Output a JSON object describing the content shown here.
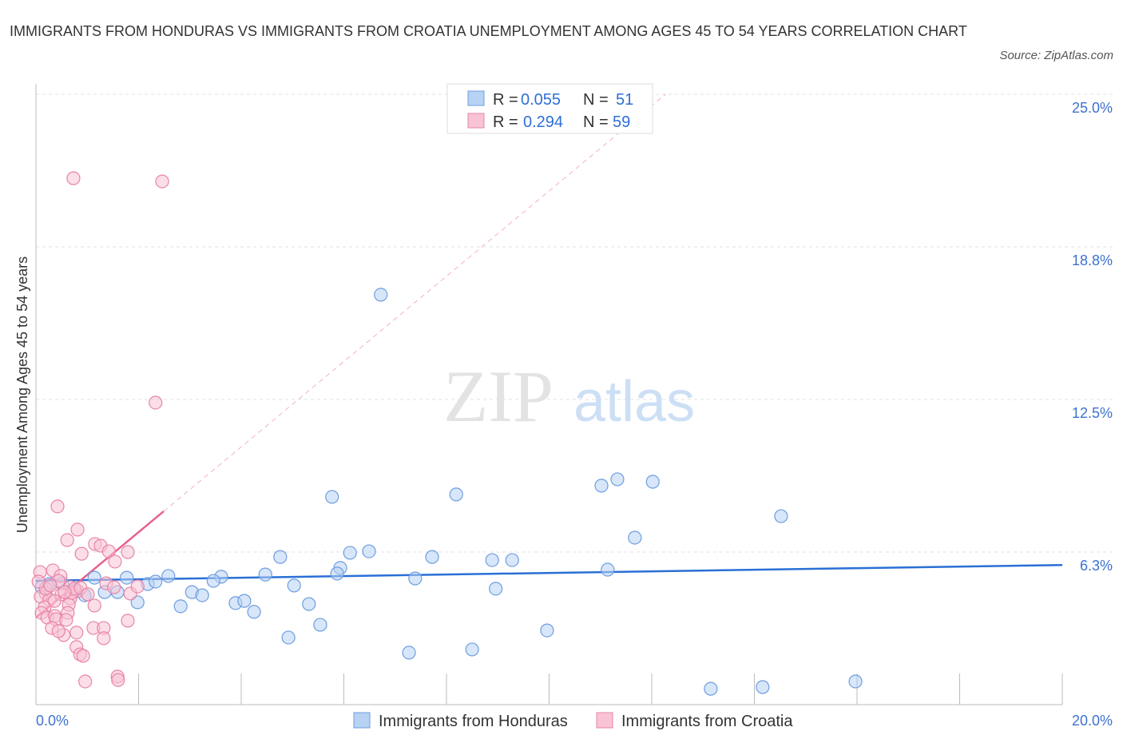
{
  "title": "IMMIGRANTS FROM HONDURAS VS IMMIGRANTS FROM CROATIA UNEMPLOYMENT AMONG AGES 45 TO 54 YEARS CORRELATION CHART",
  "source": "Source: ZipAtlas.com",
  "chart_data": {
    "type": "scatter",
    "title": "IMMIGRANTS FROM HONDURAS VS IMMIGRANTS FROM CROATIA UNEMPLOYMENT AMONG AGES 45 TO 54 YEARS CORRELATION CHART",
    "ylabel": "Unemployment Among Ages 45 to 54 years",
    "xlim": [
      0,
      20
    ],
    "ylim": [
      0,
      25
    ],
    "x_tick_labels": [
      "0.0%",
      "20.0%"
    ],
    "y_ticks": [
      6.25,
      12.5,
      18.75,
      25
    ],
    "y_tick_labels": [
      "6.3%",
      "12.5%",
      "18.8%",
      "25.0%"
    ],
    "grid": true,
    "legend_position": "top-center",
    "watermark": "ZIPatlas",
    "stats": [
      {
        "r_label": "R =",
        "r": "0.055",
        "n_label": "N =",
        "n": "51"
      },
      {
        "r_label": "R =",
        "r": "0.294",
        "n_label": "N =",
        "n": "59"
      }
    ],
    "series": [
      {
        "name": "Immigrants from Honduras",
        "fill": "#b8d2f4",
        "stroke": "#6d9de0",
        "line_color": "#2a6fd6",
        "trend": {
          "x": [
            0,
            20
          ],
          "y": [
            5.07,
            5.72
          ],
          "dashed_extension": false
        },
        "points": [
          [
            6.72,
            16.79
          ],
          [
            5.77,
            8.51
          ],
          [
            8.19,
            8.61
          ],
          [
            11.02,
            8.97
          ],
          [
            11.33,
            9.23
          ],
          [
            12.02,
            9.13
          ],
          [
            14.52,
            7.72
          ],
          [
            11.67,
            6.84
          ],
          [
            6.12,
            6.22
          ],
          [
            6.49,
            6.28
          ],
          [
            7.72,
            6.05
          ],
          [
            8.89,
            5.92
          ],
          [
            9.28,
            5.92
          ],
          [
            4.76,
            6.05
          ],
          [
            5.93,
            5.6
          ],
          [
            5.87,
            5.37
          ],
          [
            7.39,
            5.17
          ],
          [
            11.14,
            5.53
          ],
          [
            4.47,
            5.33
          ],
          [
            5.03,
            4.88
          ],
          [
            8.96,
            4.75
          ],
          [
            3.61,
            5.24
          ],
          [
            3.46,
            5.07
          ],
          [
            2.58,
            5.27
          ],
          [
            2.18,
            4.94
          ],
          [
            2.33,
            5.04
          ],
          [
            1.77,
            5.2
          ],
          [
            1.14,
            5.2
          ],
          [
            0.95,
            4.48
          ],
          [
            1.34,
            4.61
          ],
          [
            1.59,
            4.61
          ],
          [
            1.98,
            4.19
          ],
          [
            3.04,
            4.61
          ],
          [
            3.24,
            4.48
          ],
          [
            2.82,
            4.03
          ],
          [
            3.89,
            4.16
          ],
          [
            4.06,
            4.25
          ],
          [
            4.25,
            3.8
          ],
          [
            5.32,
            4.12
          ],
          [
            5.54,
            3.27
          ],
          [
            4.92,
            2.75
          ],
          [
            7.27,
            2.13
          ],
          [
            8.5,
            2.26
          ],
          [
            9.96,
            3.04
          ],
          [
            13.15,
            0.65
          ],
          [
            14.16,
            0.72
          ],
          [
            15.97,
            0.95
          ],
          [
            0.11,
            4.81
          ],
          [
            0.26,
            4.94
          ],
          [
            0.51,
            4.97
          ],
          [
            0.75,
            4.68
          ]
        ]
      },
      {
        "name": "Immigrants from Croatia",
        "fill": "#f8c3d4",
        "stroke": "#e884a7",
        "line_color": "#e8608e",
        "trend": {
          "x": [
            0,
            2.49
          ],
          "y": [
            3.57,
            7.92
          ],
          "dashed_extension": true
        },
        "points": [
          [
            0.73,
            21.56
          ],
          [
            2.46,
            21.43
          ],
          [
            2.33,
            12.37
          ],
          [
            0.42,
            8.12
          ],
          [
            0.81,
            7.17
          ],
          [
            0.61,
            6.74
          ],
          [
            1.15,
            6.58
          ],
          [
            1.26,
            6.51
          ],
          [
            1.42,
            6.28
          ],
          [
            1.79,
            6.25
          ],
          [
            0.89,
            6.18
          ],
          [
            1.54,
            5.86
          ],
          [
            0.08,
            5.43
          ],
          [
            0.33,
            5.5
          ],
          [
            0.48,
            5.27
          ],
          [
            0.44,
            5.07
          ],
          [
            1.37,
            4.97
          ],
          [
            0.67,
            4.81
          ],
          [
            0.81,
            4.65
          ],
          [
            0.19,
            4.55
          ],
          [
            0.09,
            4.42
          ],
          [
            0.26,
            4.29
          ],
          [
            0.5,
            4.52
          ],
          [
            0.67,
            4.35
          ],
          [
            1.84,
            4.55
          ],
          [
            1.98,
            4.84
          ],
          [
            0.17,
            3.99
          ],
          [
            0.64,
            4.09
          ],
          [
            1.14,
            4.06
          ],
          [
            0.11,
            3.76
          ],
          [
            0.22,
            3.57
          ],
          [
            0.37,
            3.63
          ],
          [
            0.62,
            3.76
          ],
          [
            0.39,
            3.5
          ],
          [
            0.59,
            3.47
          ],
          [
            1.79,
            3.44
          ],
          [
            0.31,
            3.14
          ],
          [
            1.12,
            3.14
          ],
          [
            1.32,
            3.14
          ],
          [
            0.54,
            2.85
          ],
          [
            0.79,
            2.95
          ],
          [
            0.44,
            3.01
          ],
          [
            1.32,
            2.72
          ],
          [
            0.79,
            2.36
          ],
          [
            0.86,
            2.06
          ],
          [
            0.92,
            2.0
          ],
          [
            1.59,
            1.15
          ],
          [
            1.6,
            1.01
          ],
          [
            0.96,
            0.95
          ],
          [
            0.7,
            4.58
          ],
          [
            0.75,
            4.75
          ],
          [
            0.87,
            4.78
          ],
          [
            0.19,
            4.75
          ],
          [
            0.36,
            4.25
          ],
          [
            0.56,
            4.61
          ],
          [
            0.28,
            4.88
          ],
          [
            1.01,
            4.52
          ],
          [
            1.52,
            4.81
          ],
          [
            0.05,
            5.04
          ]
        ]
      }
    ]
  }
}
